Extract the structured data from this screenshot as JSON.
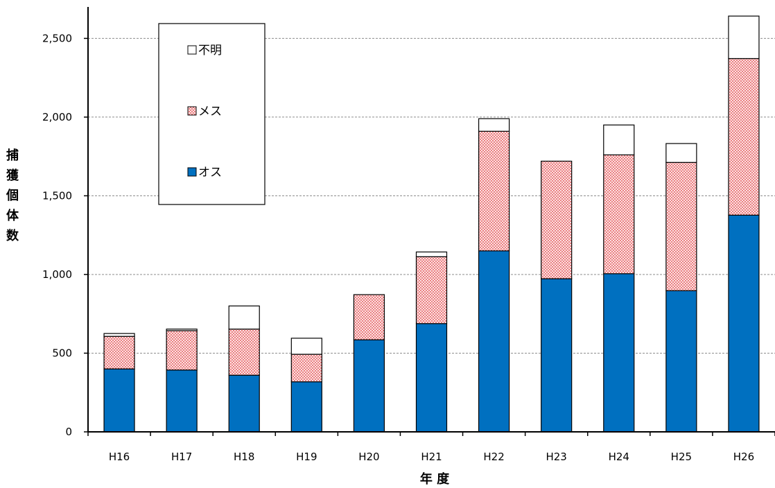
{
  "chart_data": {
    "type": "bar",
    "stacked": true,
    "categories": [
      "H16",
      "H17",
      "H18",
      "H19",
      "H20",
      "H21",
      "H22",
      "H23",
      "H24",
      "H25",
      "H26"
    ],
    "series": [
      {
        "name": "オス",
        "color": "#0070c0",
        "values": [
          400,
          393,
          360,
          318,
          585,
          688,
          1150,
          973,
          1005,
          897,
          1377
        ]
      },
      {
        "name": "メス",
        "color": "#f4a6a6",
        "pattern": "dotted",
        "values": [
          207,
          250,
          293,
          175,
          287,
          425,
          760,
          747,
          755,
          815,
          995
        ]
      },
      {
        "name": "不明",
        "color": "#ffffff",
        "values": [
          18,
          10,
          147,
          102,
          0,
          30,
          80,
          0,
          190,
          120,
          270
        ]
      }
    ],
    "xlabel": "年 度",
    "ylabel": "捕獲個体数",
    "ylim": [
      0,
      2700
    ],
    "yticks": [
      "0",
      "500",
      "1,000",
      "1,500",
      "2,000",
      "2,500"
    ],
    "grid": true,
    "legend_position": "top-left",
    "legend_order": [
      "不明",
      "メス",
      "オス"
    ]
  }
}
